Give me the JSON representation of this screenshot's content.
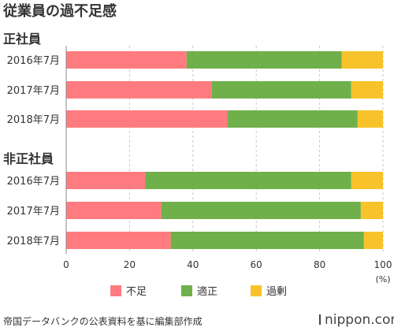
{
  "chart_data": {
    "type": "bar",
    "orientation": "horizontal",
    "stacked": true,
    "title": "従業員の過不足感",
    "unit_label": "(%)",
    "xlim": [
      0,
      100
    ],
    "xticks": [
      0,
      20,
      40,
      60,
      80,
      100
    ],
    "grid": true,
    "legend_position": "bottom",
    "series_names": [
      "不足",
      "適正",
      "過剰"
    ],
    "series_colors": [
      "#ff7b7f",
      "#6fb04b",
      "#f8c32a"
    ],
    "groups": [
      {
        "name": "正社員",
        "categories": [
          "2016年7月",
          "2017年7月",
          "2018年7月"
        ],
        "series": [
          {
            "name": "不足",
            "values": [
              38,
              46,
              51
            ]
          },
          {
            "name": "適正",
            "values": [
              49,
              44,
              41
            ]
          },
          {
            "name": "過剰",
            "values": [
              13,
              10,
              8
            ]
          }
        ]
      },
      {
        "name": "非正社員",
        "categories": [
          "2016年7月",
          "2017年7月",
          "2018年7月"
        ],
        "series": [
          {
            "name": "不足",
            "values": [
              25,
              30,
              33
            ]
          },
          {
            "name": "適正",
            "values": [
              65,
              63,
              61
            ]
          },
          {
            "name": "過剰",
            "values": [
              10,
              7,
              6
            ]
          }
        ]
      }
    ]
  },
  "footer": {
    "source": "帝国データバンクの公表資料を基に編集部作成",
    "brand": "nippon.com"
  }
}
